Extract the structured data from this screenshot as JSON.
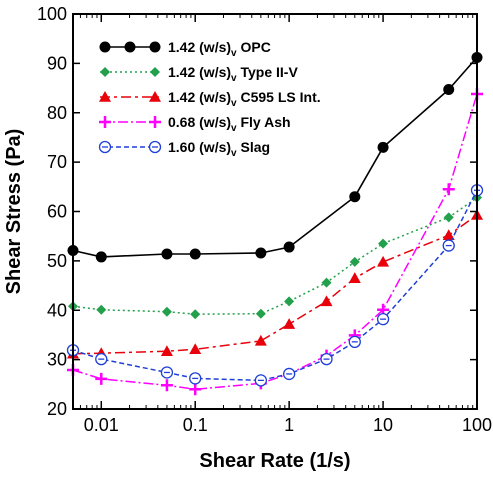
{
  "chart_data": {
    "type": "line",
    "xlabel": "Shear Rate (1/s)",
    "ylabel": "Shear Stress (Pa)",
    "xscale": "log",
    "xlim": [
      0.005,
      100
    ],
    "ylim": [
      20,
      100
    ],
    "yticks": [
      20,
      30,
      40,
      50,
      60,
      70,
      80,
      90,
      100
    ],
    "xticks": [
      0.01,
      0.1,
      1,
      10,
      100
    ],
    "xtick_labels": [
      "0.01",
      "0.1",
      "1",
      "10",
      "100"
    ],
    "legend_position": "top-left",
    "grid": false,
    "series": [
      {
        "name": "1.42 (w/s)",
        "name_sub": "v",
        "name_suffix": " OPC",
        "color": "#000000",
        "dash": "",
        "marker": "circle",
        "x": [
          0.005,
          0.01,
          0.05,
          0.1,
          0.5,
          1,
          5,
          10,
          50,
          100
        ],
        "y": [
          52.1,
          50.8,
          51.4,
          51.4,
          51.6,
          52.8,
          63,
          73,
          84.7,
          91.2
        ]
      },
      {
        "name": "1.42 (w/s)",
        "name_sub": "v",
        "name_suffix": " Type II-V",
        "color": "#22a04b",
        "dash": "2,3",
        "marker": "diamond",
        "x": [
          0.005,
          0.01,
          0.05,
          0.1,
          0.5,
          1,
          2.5,
          5,
          10,
          50,
          100
        ],
        "y": [
          40.8,
          40.1,
          39.7,
          39.2,
          39.3,
          41.8,
          45.6,
          49.8,
          53.5,
          58.8,
          62.8
        ]
      },
      {
        "name": "1.42 (w/s)",
        "name_sub": "v",
        "name_suffix": " C595 LS Int.",
        "color": "#e8000b",
        "dash": "10,4,3,4",
        "marker": "triangle",
        "x": [
          0.005,
          0.01,
          0.05,
          0.1,
          0.5,
          1,
          2.5,
          5,
          10,
          50,
          100
        ],
        "y": [
          31.2,
          31.3,
          31.7,
          32.1,
          33.8,
          37.2,
          41.8,
          46.5,
          49.8,
          55.2,
          59.3
        ]
      },
      {
        "name": "0.68 (w/s)",
        "name_sub": "v",
        "name_suffix": " Fly Ash",
        "color": "#ff00ff",
        "dash": "10,3,2,3",
        "marker": "plus",
        "x": [
          0.005,
          0.01,
          0.05,
          0.1,
          0.5,
          1,
          2.5,
          5,
          10,
          50,
          100
        ],
        "y": [
          27.9,
          26.1,
          24.8,
          24.0,
          25.2,
          27.1,
          30.8,
          34.9,
          40.1,
          64.5,
          83.8
        ]
      },
      {
        "name": "1.60 (w/s)",
        "name_sub": "v",
        "name_suffix": " Slag",
        "color": "#1f3fd8",
        "dash": "5,3",
        "marker": "circle-dash",
        "x": [
          0.005,
          0.01,
          0.05,
          0.1,
          0.5,
          1,
          2.5,
          5,
          10,
          50,
          100
        ],
        "y": [
          31.9,
          30.1,
          27.4,
          26.2,
          25.8,
          27.1,
          30.1,
          33.6,
          38.2,
          53.1,
          64.3
        ]
      }
    ]
  }
}
